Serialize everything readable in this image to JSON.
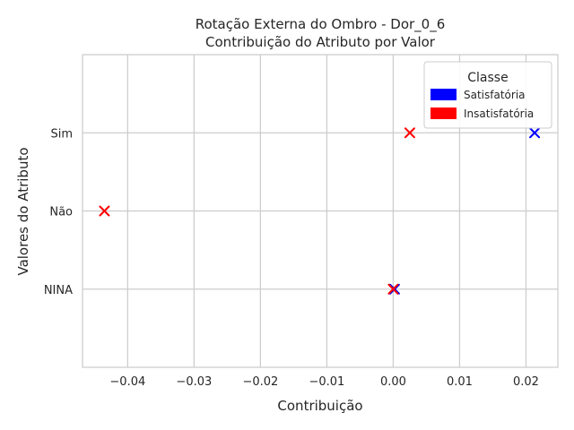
{
  "chart_data": {
    "type": "scatter",
    "title": "Rotação Externa do Ombro - Dor_0_6",
    "subtitle": "Contribuição do Atributo por Valor",
    "xlabel": "Contribuição",
    "ylabel": "Valores do Atributo",
    "categories": [
      "NINA",
      "Não",
      "Sim"
    ],
    "xlim": [
      -0.0468,
      0.0248
    ],
    "xticks": [
      -0.04,
      -0.03,
      -0.02,
      -0.01,
      0.0,
      0.01,
      0.02
    ],
    "xtick_labels": [
      "−0.04",
      "−0.03",
      "−0.02",
      "−0.01",
      "0.00",
      "0.01",
      "0.02"
    ],
    "grid": true,
    "legend": {
      "title": "Classe",
      "placement": "top-right"
    },
    "series": [
      {
        "name": "Satisfatória",
        "color": "#0000ff",
        "marker": "x",
        "points": [
          {
            "y": "Sim",
            "x": 0.0213
          },
          {
            "y": "NINA",
            "x": 0.0002
          }
        ]
      },
      {
        "name": "Insatisfatória",
        "color": "#ff0000",
        "marker": "x",
        "points": [
          {
            "y": "Sim",
            "x": 0.0025
          },
          {
            "y": "Não",
            "x": -0.0435
          },
          {
            "y": "NINA",
            "x": 0.0
          }
        ]
      }
    ]
  }
}
